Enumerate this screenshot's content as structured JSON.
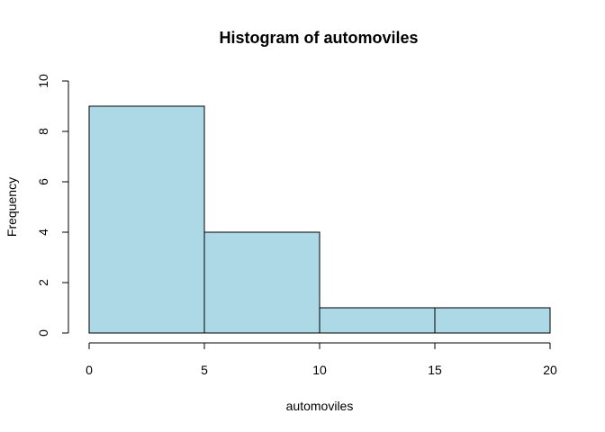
{
  "chart_data": {
    "type": "bar",
    "title": "Histogram of automoviles",
    "xlabel": "automoviles",
    "ylabel": "Frequency",
    "bins": [
      {
        "from": 0,
        "to": 5,
        "count": 9
      },
      {
        "from": 5,
        "to": 10,
        "count": 4
      },
      {
        "from": 10,
        "to": 15,
        "count": 1
      },
      {
        "from": 15,
        "to": 20,
        "count": 1
      }
    ],
    "xlim": [
      0,
      20
    ],
    "ylim": [
      0,
      10
    ],
    "x_ticks": [
      "0",
      "5",
      "10",
      "15",
      "20"
    ],
    "y_ticks": [
      "0",
      "2",
      "4",
      "6",
      "8",
      "10"
    ],
    "grid": false,
    "legend": "none",
    "bar_color": "#add8e6",
    "edge_color": "#000000"
  }
}
